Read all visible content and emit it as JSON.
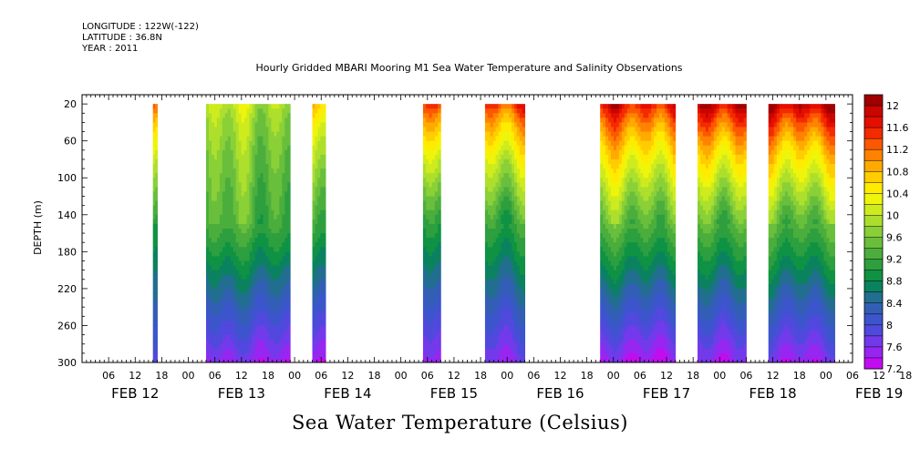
{
  "header": {
    "longitude": "LONGITUDE : 122W(-122)",
    "latitude": "LATITUDE : 36.8N",
    "year": "YEAR : 2011"
  },
  "chart_data": {
    "type": "heatmap",
    "title": "Hourly Gridded MBARI Mooring M1 Sea Water Temperature and Salinity Observations",
    "ylabel": "DEPTH (m)",
    "xlabel": "Sea Water Temperature (Celsius)",
    "ylim": [
      300,
      10
    ],
    "y_ticks": [
      20,
      60,
      100,
      140,
      180,
      220,
      260,
      300
    ],
    "x_range_hours": [
      0,
      174
    ],
    "hour_ticks": [
      "06",
      "12",
      "18",
      "00",
      "06",
      "12",
      "18",
      "00",
      "06",
      "12",
      "18",
      "00",
      "06",
      "12",
      "18",
      "00",
      "06",
      "12",
      "18",
      "00",
      "06",
      "12",
      "18",
      "00",
      "06",
      "12",
      "18",
      "00",
      "06",
      "12",
      "18",
      "00",
      "06"
    ],
    "day_labels": [
      "FEB 12",
      "FEB 13",
      "FEB 14",
      "FEB 15",
      "FEB 16",
      "FEB 17",
      "FEB 18",
      "FEB 19"
    ],
    "colorbar": {
      "ticks": [
        "12",
        "11.6",
        "11.2",
        "10.8",
        "10.4",
        "10",
        "9.6",
        "9.2",
        "8.8",
        "8.4",
        "8",
        "7.6",
        "7.2"
      ],
      "min": 7.2,
      "max": 12.2,
      "step": 0.2
    },
    "data_segments": [
      {
        "start_hour": 16,
        "end_hour": 17,
        "surface_temp": 11.0,
        "mid_temp": 8.8,
        "bottom_temp": 7.7,
        "max_temp": 11.2
      },
      {
        "start_hour": 28,
        "end_hour": 47,
        "surface_temp": 10.0,
        "mid_temp": 9.3,
        "bottom_temp": 7.5,
        "max_temp": 11.8
      },
      {
        "start_hour": 52,
        "end_hour": 55,
        "surface_temp": 10.8,
        "mid_temp": 9.2,
        "bottom_temp": 7.4,
        "max_temp": 11.2
      },
      {
        "start_hour": 77,
        "end_hour": 81,
        "surface_temp": 11.6,
        "mid_temp": 9.1,
        "bottom_temp": 7.5,
        "max_temp": 11.8
      },
      {
        "start_hour": 91,
        "end_hour": 100,
        "surface_temp": 11.6,
        "mid_temp": 9.2,
        "bottom_temp": 7.6,
        "max_temp": 12.0
      },
      {
        "start_hour": 117,
        "end_hour": 134,
        "surface_temp": 11.8,
        "mid_temp": 9.4,
        "bottom_temp": 7.4,
        "max_temp": 12.0
      },
      {
        "start_hour": 139,
        "end_hour": 150,
        "surface_temp": 12.1,
        "mid_temp": 9.4,
        "bottom_temp": 7.5,
        "max_temp": 12.1
      },
      {
        "start_hour": 155,
        "end_hour": 170,
        "surface_temp": 12.1,
        "mid_temp": 9.4,
        "bottom_temp": 7.5,
        "max_temp": 12.2
      }
    ]
  }
}
